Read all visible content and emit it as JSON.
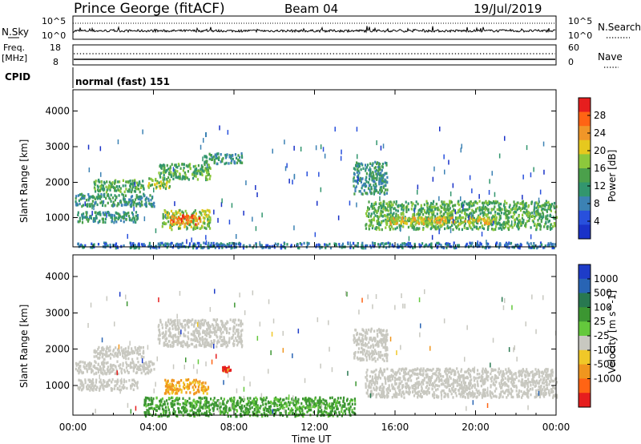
{
  "header": {
    "title": "Prince George (fitACF)",
    "beam": "Beam 04",
    "date": "19/Jul/2019"
  },
  "nsky_panel": {
    "left_label": "N.Sky",
    "right_label": "N.Search",
    "left_ticks": [
      "10^5",
      "10^0"
    ],
    "right_ticks": [
      "10^5",
      "10^0"
    ]
  },
  "freq_panel": {
    "left_label_1": "Freq.",
    "left_label_2": "[MHz]",
    "right_label": "Nave",
    "left_ticks": [
      "18",
      "8"
    ],
    "right_ticks": [
      "60",
      "0"
    ]
  },
  "cpid_panel": {
    "label": "CPID",
    "mode": "normal (fast) 151"
  },
  "colors": {
    "power": [
      "#1a32c8",
      "#2850dc",
      "#3c82b4",
      "#32966e",
      "#4ba04b",
      "#8cc83c",
      "#e6c81e",
      "#f09628",
      "#ff6414",
      "#e61e1e"
    ],
    "velocity_gray": "#c8c8c0"
  },
  "chart_data": [
    {
      "type": "heatmap",
      "name": "power",
      "ylabel": "Slant Range [km]",
      "yticks": [
        "1000",
        "2000",
        "3000",
        "4000"
      ],
      "ylim": [
        180,
        4600
      ],
      "colorbar": {
        "label": "Power [dB]",
        "ticks": [
          "4",
          "8",
          "12",
          "16",
          "20",
          "24",
          "28"
        ],
        "range": [
          0,
          32
        ],
        "colors": [
          "#1a32c8",
          "#2850dc",
          "#3c82b4",
          "#32966e",
          "#4ba04b",
          "#8cc83c",
          "#e6c81e",
          "#f09628",
          "#ff6414",
          "#e61e1e"
        ]
      },
      "regions": [
        {
          "t0": 0.1,
          "t1": 4.0,
          "r0": 1350,
          "r1": 1700,
          "level": 3
        },
        {
          "t0": 1.0,
          "t1": 3.5,
          "r0": 1750,
          "r1": 2100,
          "level": 4
        },
        {
          "t0": 0.2,
          "t1": 3.2,
          "r0": 900,
          "r1": 1200,
          "level": 3
        },
        {
          "t0": 3.7,
          "t1": 4.8,
          "r0": 1850,
          "r1": 2150,
          "level": 5
        },
        {
          "t0": 4.2,
          "t1": 6.8,
          "r0": 2100,
          "r1": 2550,
          "level": 4
        },
        {
          "t0": 6.5,
          "t1": 8.4,
          "r0": 2550,
          "r1": 2850,
          "level": 3
        },
        {
          "t0": 4.4,
          "t1": 6.8,
          "r0": 700,
          "r1": 1250,
          "level": 5
        },
        {
          "t0": 4.8,
          "t1": 6.3,
          "r0": 850,
          "r1": 1100,
          "level": 8
        },
        {
          "t0": 13.9,
          "t1": 15.6,
          "r0": 1700,
          "r1": 2600,
          "level": 3
        },
        {
          "t0": 14.5,
          "t1": 24.0,
          "r0": 700,
          "r1": 1500,
          "level": 4
        },
        {
          "t0": 15.5,
          "t1": 21.0,
          "r0": 850,
          "r1": 1050,
          "level": 6
        },
        {
          "t0": 0.0,
          "t1": 24.0,
          "r0": 180,
          "r1": 330,
          "level": 2
        }
      ]
    },
    {
      "type": "heatmap",
      "name": "velocity",
      "ylabel": "Slant Range [km]",
      "yticks": [
        "1000",
        "2000",
        "3000",
        "4000"
      ],
      "ylim": [
        180,
        4600
      ],
      "colorbar": {
        "label": "Velocity [m s^-1]",
        "ticks": [
          "1000",
          "500",
          "100",
          "25",
          "-25",
          "-100",
          "-500",
          "-1000"
        ],
        "colors": [
          "#1e3cc8",
          "#2864b4",
          "#287850",
          "#3c9632",
          "#64c83c",
          "#c8c8c0",
          "#f0c828",
          "#f0961e",
          "#ff6414",
          "#e61e1e"
        ]
      },
      "regions": [
        {
          "t0": 0.1,
          "t1": 4.0,
          "r0": 1350,
          "r1": 1700,
          "vel": 0
        },
        {
          "t0": 1.0,
          "t1": 3.5,
          "r0": 1750,
          "r1": 2100,
          "vel": 0
        },
        {
          "t0": 0.2,
          "t1": 3.2,
          "r0": 900,
          "r1": 1200,
          "vel": 0
        },
        {
          "t0": 4.2,
          "t1": 8.4,
          "r0": 2100,
          "r1": 2850,
          "vel": 0
        },
        {
          "t0": 4.5,
          "t1": 6.7,
          "r0": 800,
          "r1": 1200,
          "vel": -300
        },
        {
          "t0": 7.4,
          "t1": 7.8,
          "r0": 1400,
          "r1": 1550,
          "vel": -800
        },
        {
          "t0": 13.9,
          "t1": 15.6,
          "r0": 1700,
          "r1": 2600,
          "vel": 0
        },
        {
          "t0": 14.5,
          "t1": 24.0,
          "r0": 700,
          "r1": 1500,
          "vel": 0
        },
        {
          "t0": 3.5,
          "t1": 14.0,
          "r0": 180,
          "r1": 700,
          "vel": 150
        }
      ]
    }
  ],
  "xaxis": {
    "label": "Time UT",
    "ticks": [
      "00:00",
      "04:00",
      "08:00",
      "12:00",
      "16:00",
      "20:00",
      "00:00"
    ],
    "range_hours": [
      0,
      24
    ]
  }
}
